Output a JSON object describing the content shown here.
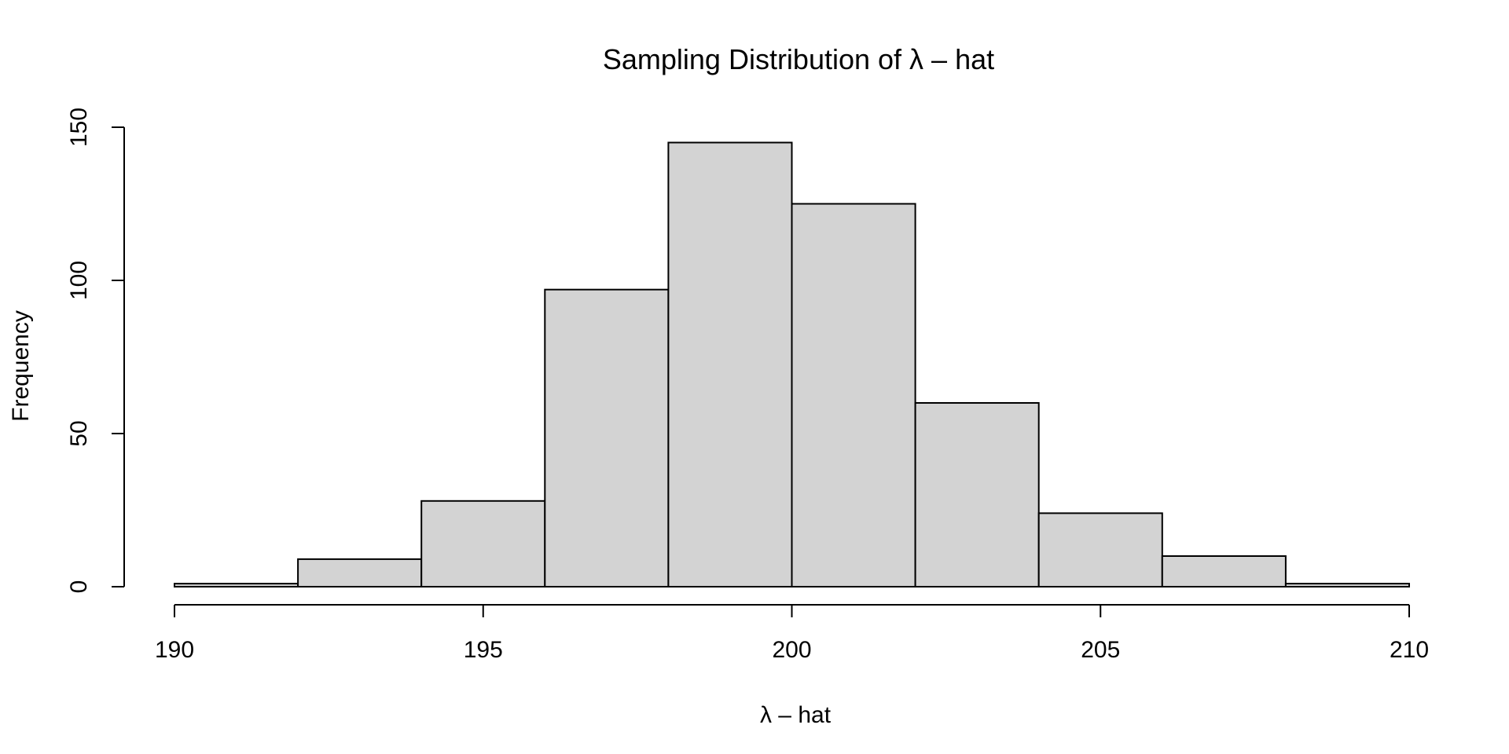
{
  "chart_data": {
    "type": "bar",
    "title": "Sampling Distribution of λ – hat",
    "xlabel": "λ – hat",
    "ylabel": "Frequency",
    "bins": [
      {
        "start": 190,
        "end": 192,
        "count": 1
      },
      {
        "start": 192,
        "end": 194,
        "count": 9
      },
      {
        "start": 194,
        "end": 196,
        "count": 28
      },
      {
        "start": 196,
        "end": 198,
        "count": 97
      },
      {
        "start": 198,
        "end": 200,
        "count": 145
      },
      {
        "start": 200,
        "end": 202,
        "count": 125
      },
      {
        "start": 202,
        "end": 204,
        "count": 60
      },
      {
        "start": 204,
        "end": 206,
        "count": 24
      },
      {
        "start": 206,
        "end": 208,
        "count": 10
      },
      {
        "start": 208,
        "end": 210,
        "count": 1
      }
    ],
    "xlim": [
      190,
      210
    ],
    "ylim": [
      0,
      150
    ],
    "x_ticks": [
      190,
      195,
      200,
      205,
      210
    ],
    "y_ticks": [
      0,
      50,
      100,
      150
    ],
    "grid": false,
    "colors": {
      "bar_fill": "#d3d3d3",
      "bar_stroke": "#000000",
      "axis": "#000000"
    }
  }
}
